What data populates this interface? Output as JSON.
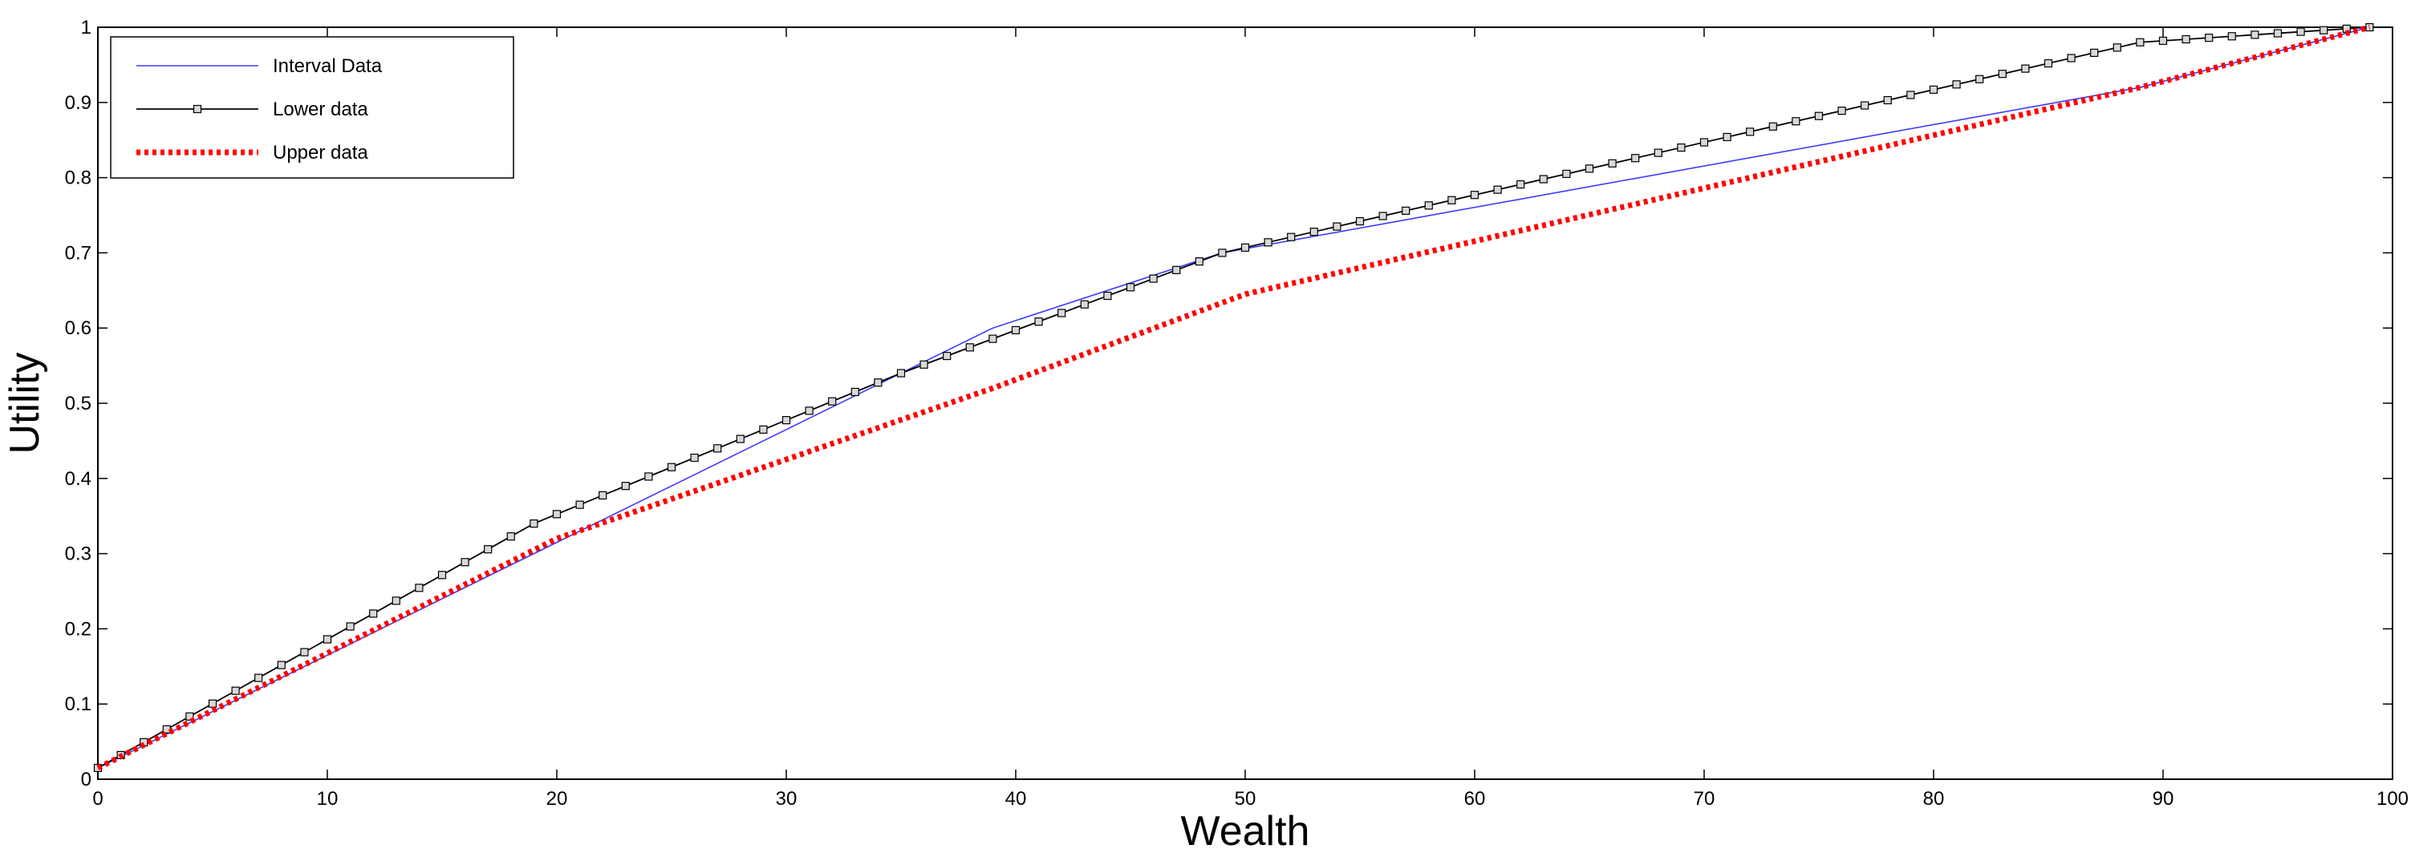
{
  "chart_data": {
    "type": "line",
    "title": "",
    "xlabel": "Wealth",
    "ylabel": "Utility",
    "xlim": [
      0,
      100
    ],
    "ylim": [
      0,
      1
    ],
    "xticks": [
      0,
      10,
      20,
      30,
      40,
      50,
      60,
      70,
      80,
      90,
      100
    ],
    "yticks": [
      0,
      0.1,
      0.2,
      0.3,
      0.4,
      0.5,
      0.6,
      0.7,
      0.8,
      0.9,
      1
    ],
    "xtick_labels": [
      "0",
      "10",
      "20",
      "30",
      "40",
      "50",
      "60",
      "70",
      "80",
      "90",
      "100"
    ],
    "ytick_labels": [
      "0",
      "0.1",
      "0.2",
      "0.3",
      "0.4",
      "0.5",
      "0.6",
      "0.7",
      "0.8",
      "0.9",
      "1"
    ],
    "grid": false,
    "legend_position": "top-left",
    "series": [
      {
        "name": "Interval Data",
        "color": "#3b3bff",
        "style": "solid",
        "marker": "none",
        "points": [
          [
            0,
            0.015
          ],
          [
            39,
            0.6
          ],
          [
            49,
            0.7
          ],
          [
            89,
            0.92
          ],
          [
            99,
            1.0
          ]
        ]
      },
      {
        "name": "Lower data",
        "color": "#000000",
        "style": "solid",
        "marker": "square",
        "points": [
          [
            0,
            0.015
          ],
          [
            19,
            0.34
          ],
          [
            35,
            0.54
          ],
          [
            49,
            0.7
          ],
          [
            89,
            0.98
          ],
          [
            99,
            1.0
          ]
        ]
      },
      {
        "name": "Upper data",
        "color": "#ff0000",
        "style": "dotted",
        "marker": "none",
        "points": [
          [
            0,
            0.015
          ],
          [
            20,
            0.32
          ],
          [
            39,
            0.52
          ],
          [
            50,
            0.645
          ],
          [
            89,
            0.92
          ],
          [
            99,
            1.0
          ]
        ]
      }
    ]
  }
}
